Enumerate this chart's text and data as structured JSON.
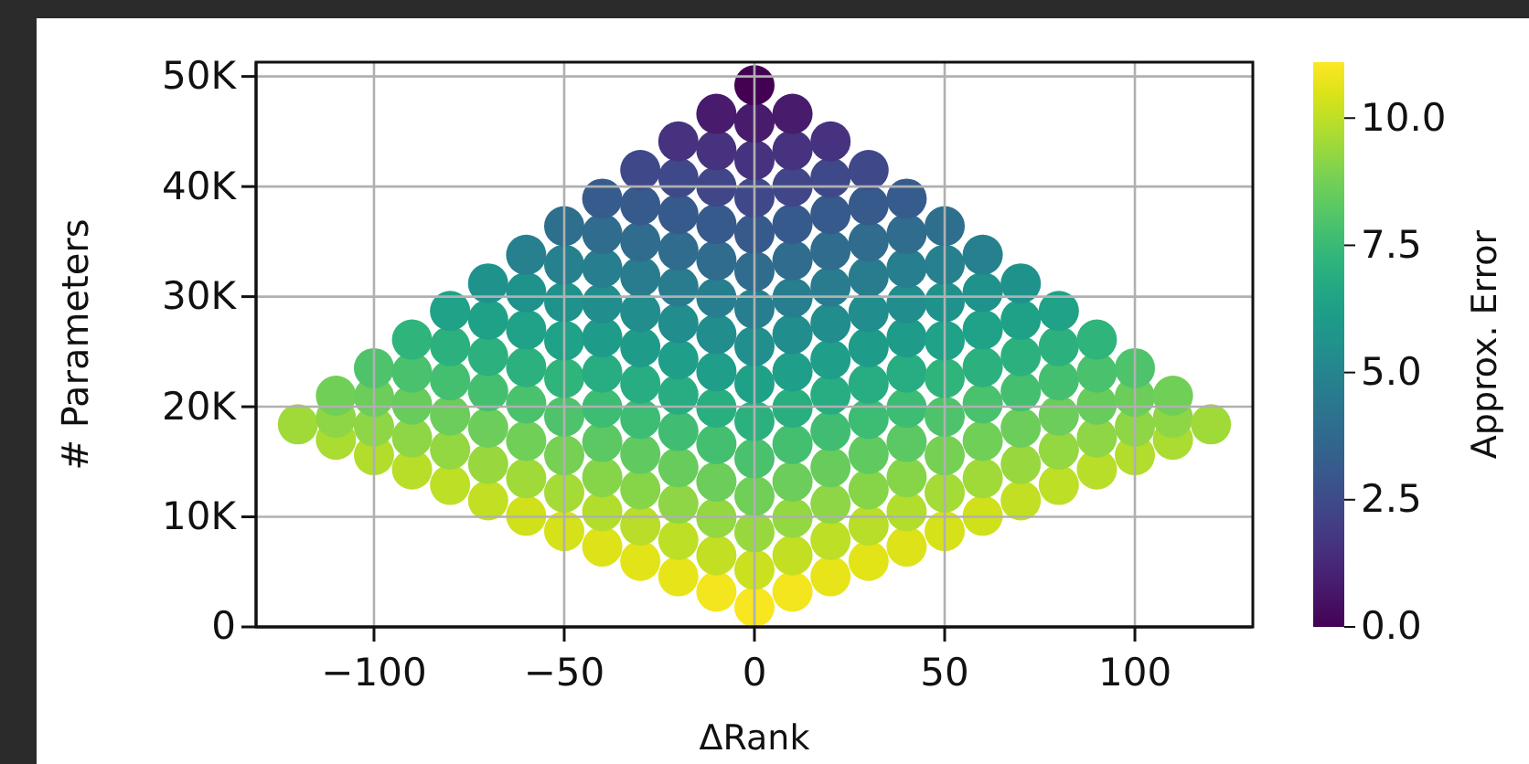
{
  "chart_data": {
    "type": "scatter",
    "xlabel": "ΔRank",
    "ylabel": "# Parameters",
    "clabel": "Approx. Error",
    "marker": "circle",
    "grid": true,
    "xlim": [
      -131,
      131
    ],
    "ylim": [
      0,
      51300
    ],
    "clim": [
      0,
      11.1
    ],
    "xticks": [
      {
        "value": -100,
        "label": "−100"
      },
      {
        "value": -50,
        "label": "−50"
      },
      0,
      50,
      100
    ],
    "yticks": [
      0,
      {
        "value": 10000,
        "label": "10K"
      },
      {
        "value": 20000,
        "label": "20K"
      },
      {
        "value": 30000,
        "label": "30K"
      },
      {
        "value": 40000,
        "label": "40K"
      },
      {
        "value": 50000,
        "label": "50K"
      }
    ],
    "cticks": [
      {
        "value": 0,
        "label": "0.0"
      },
      2.5,
      {
        "value": 5,
        "label": "5.0"
      },
      7.5,
      {
        "value": 10,
        "label": "10.0"
      }
    ],
    "series": [
      {
        "x": [
          -120,
          -110,
          -110,
          -110,
          -100,
          -100,
          -100,
          -100,
          -90,
          -90,
          -90,
          -90,
          -90,
          -80,
          -80,
          -80,
          -80,
          -80,
          -80,
          -70,
          -70,
          -70,
          -70,
          -70,
          -70,
          -70,
          -60,
          -60,
          -60,
          -60,
          -60,
          -60,
          -60,
          -60,
          -50,
          -50,
          -50,
          -50,
          -50,
          -50,
          -50,
          -50,
          -50,
          -40,
          -40,
          -40,
          -40,
          -40,
          -40,
          -40,
          -40,
          -40,
          -40,
          -40,
          -30,
          -30,
          -30,
          -30,
          -30,
          -30,
          -30,
          -30,
          -30,
          -30,
          -30,
          -30,
          -20,
          -20,
          -20,
          -20,
          -20,
          -20,
          -20,
          -20,
          -20,
          -20,
          -20,
          -20,
          -20,
          -10,
          -10,
          -10,
          -10,
          -10,
          -10,
          -10,
          -10,
          -10,
          -10,
          -10,
          -10,
          -10,
          -10,
          0,
          0,
          0,
          0,
          0,
          0,
          0,
          0,
          0,
          0,
          0,
          0,
          0,
          0,
          0,
          10,
          10,
          10,
          10,
          10,
          10,
          10,
          10,
          10,
          10,
          10,
          10,
          10,
          10,
          20,
          20,
          20,
          20,
          20,
          20,
          20,
          20,
          20,
          20,
          20,
          20,
          20,
          30,
          30,
          30,
          30,
          30,
          30,
          30,
          30,
          30,
          30,
          30,
          30,
          40,
          40,
          40,
          40,
          40,
          40,
          40,
          40,
          40,
          40,
          40,
          50,
          50,
          50,
          50,
          50,
          50,
          50,
          50,
          50,
          60,
          60,
          60,
          60,
          60,
          60,
          60,
          60,
          70,
          70,
          70,
          70,
          70,
          70,
          70,
          80,
          80,
          80,
          80,
          80,
          80,
          90,
          90,
          90,
          90,
          90,
          100,
          100,
          100,
          100,
          110,
          110,
          110,
          120
        ],
        "values": [
          18400,
          17000,
          19000,
          21000,
          15600,
          18200,
          20900,
          23500,
          14300,
          17200,
          20200,
          23100,
          26100,
          12900,
          16100,
          19200,
          22400,
          25500,
          28700,
          11500,
          14800,
          18100,
          21400,
          24600,
          27900,
          31200,
          10100,
          13500,
          16900,
          20300,
          23600,
          27000,
          30400,
          33800,
          8700,
          12200,
          15600,
          19100,
          22600,
          26000,
          29500,
          32900,
          36400,
          7300,
          10500,
          13600,
          16800,
          19900,
          23100,
          26300,
          29400,
          32600,
          35700,
          38900,
          6000,
          9200,
          12500,
          15700,
          18900,
          22100,
          25400,
          28600,
          31800,
          35000,
          38300,
          41500,
          4600,
          7900,
          11200,
          14500,
          17800,
          21100,
          24300,
          27600,
          30900,
          34200,
          37500,
          40800,
          44100,
          3200,
          6500,
          9900,
          13200,
          16600,
          19900,
          23200,
          26600,
          29900,
          33300,
          36600,
          40000,
          43300,
          46600,
          1800,
          5200,
          8600,
          11900,
          15300,
          18700,
          22100,
          25500,
          28900,
          32300,
          35700,
          39000,
          42400,
          45800,
          49200,
          3200,
          6500,
          9900,
          13200,
          16600,
          19900,
          23200,
          26600,
          29900,
          33300,
          36600,
          40000,
          43300,
          46600,
          4600,
          7900,
          11200,
          14500,
          17800,
          21100,
          24300,
          27600,
          30900,
          34200,
          37500,
          40800,
          44100,
          6000,
          9200,
          12500,
          15700,
          18900,
          22100,
          25400,
          28600,
          31800,
          35000,
          38300,
          41500,
          7300,
          10500,
          13600,
          16800,
          19900,
          23100,
          26300,
          29400,
          32600,
          35700,
          38900,
          8700,
          12200,
          15600,
          19100,
          22600,
          26000,
          29500,
          32900,
          36400,
          10100,
          13500,
          16900,
          20300,
          23600,
          27000,
          30400,
          33800,
          11500,
          14800,
          18100,
          21400,
          24600,
          27900,
          31200,
          12900,
          16100,
          19200,
          22400,
          25500,
          28700,
          14300,
          17200,
          20200,
          23100,
          26100,
          15600,
          18200,
          20900,
          23500,
          17000,
          19000,
          21000,
          18400
        ],
        "cvalues": [
          9.5,
          9.7,
          9.2,
          8.7,
          9.8,
          9.2,
          8.6,
          8.0,
          9.9,
          9.2,
          8.5,
          7.9,
          7.2,
          10.0,
          9.3,
          8.6,
          7.8,
          7.1,
          6.4,
          10.1,
          9.4,
          8.6,
          7.8,
          7.1,
          6.3,
          5.6,
          10.3,
          9.5,
          8.7,
          7.9,
          7.1,
          6.4,
          5.6,
          4.8,
          10.4,
          9.6,
          8.8,
          8.0,
          7.2,
          6.4,
          5.6,
          4.8,
          4.0,
          10.5,
          9.8,
          9.1,
          8.3,
          7.6,
          6.9,
          6.1,
          5.4,
          4.7,
          3.9,
          3.2,
          10.6,
          9.9,
          9.1,
          8.4,
          7.6,
          6.9,
          6.1,
          5.4,
          4.6,
          3.9,
          3.1,
          2.4,
          10.7,
          10.0,
          9.2,
          8.5,
          7.7,
          6.9,
          6.2,
          5.4,
          4.6,
          3.9,
          3.1,
          2.4,
          1.6,
          10.9,
          10.1,
          9.3,
          8.6,
          7.8,
          7.0,
          6.2,
          5.4,
          4.7,
          3.9,
          3.1,
          2.3,
          1.6,
          0.8,
          11.0,
          10.2,
          9.4,
          8.7,
          7.9,
          7.1,
          6.3,
          5.5,
          4.7,
          3.9,
          3.1,
          2.4,
          1.6,
          0.8,
          0,
          10.9,
          10.1,
          9.3,
          8.6,
          7.8,
          7.0,
          6.2,
          5.4,
          4.7,
          3.9,
          3.1,
          2.3,
          1.6,
          0.8,
          10.7,
          10.0,
          9.2,
          8.5,
          7.7,
          6.9,
          6.2,
          5.4,
          4.6,
          3.9,
          3.1,
          2.4,
          1.6,
          10.6,
          9.9,
          9.1,
          8.4,
          7.6,
          6.9,
          6.1,
          5.4,
          4.6,
          3.9,
          3.1,
          2.4,
          10.5,
          9.8,
          9.1,
          8.3,
          7.6,
          6.9,
          6.1,
          5.4,
          4.7,
          3.9,
          3.2,
          10.4,
          9.6,
          8.8,
          8.0,
          7.2,
          6.4,
          5.6,
          4.8,
          4.0,
          10.3,
          9.5,
          8.7,
          7.9,
          7.1,
          6.4,
          5.6,
          4.8,
          10.1,
          9.4,
          8.6,
          7.8,
          7.1,
          6.3,
          5.6,
          10.0,
          9.3,
          8.6,
          7.8,
          7.1,
          6.4,
          9.9,
          9.2,
          8.5,
          7.9,
          7.2,
          9.8,
          9.2,
          8.6,
          8.0,
          9.7,
          9.2,
          8.7,
          9.5
        ]
      }
    ]
  }
}
